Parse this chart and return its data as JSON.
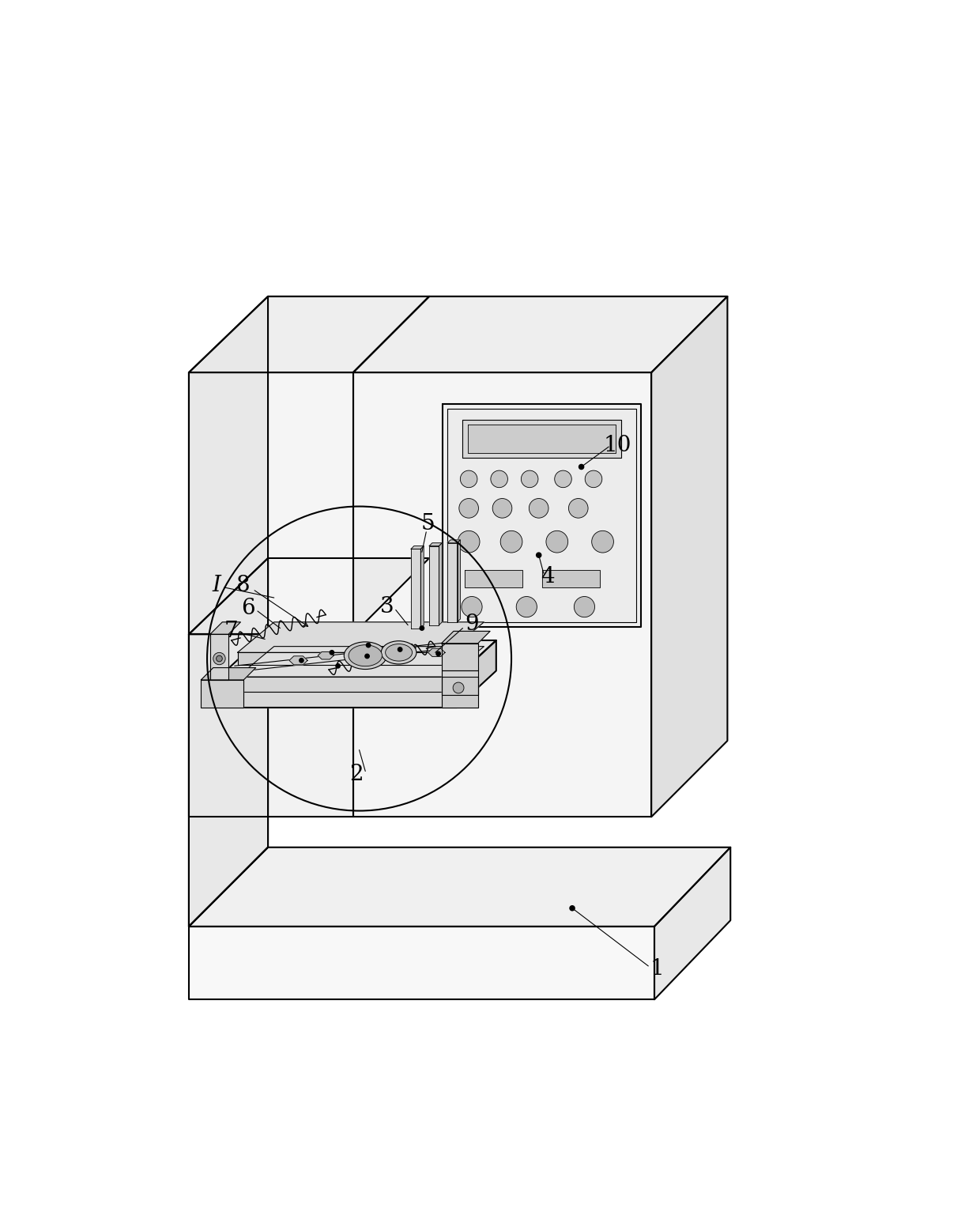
{
  "bg_color": "#ffffff",
  "line_color": "#000000",
  "lw_main": 1.5,
  "lw_thin": 0.8,
  "lw_detail": 0.6,
  "fig_width": 12.4,
  "fig_height": 15.52,
  "label_fontsize": 20,
  "label_fontsize_small": 18
}
